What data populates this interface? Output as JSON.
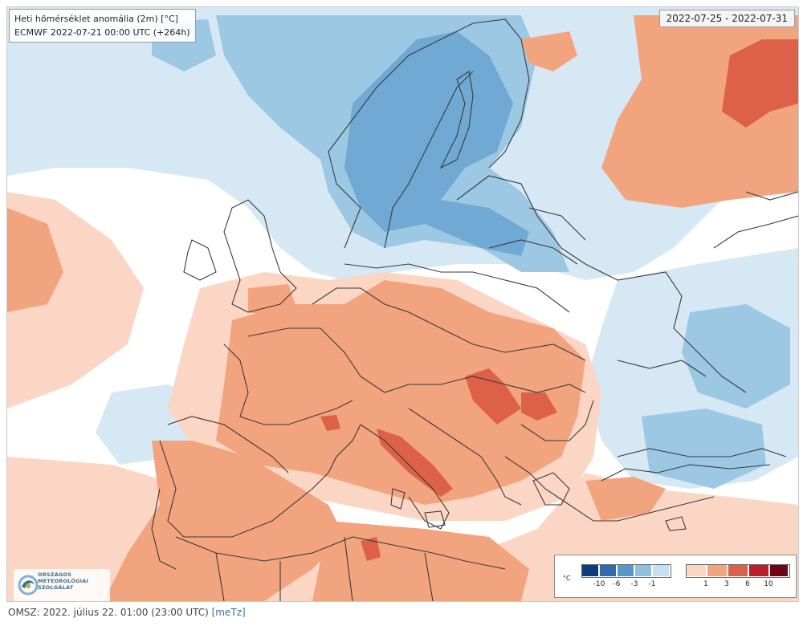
{
  "header": {
    "title": "Heti hőmérséklet anomália (2m) [°C]",
    "run": "ECMWF 2022-07-21 00:00 UTC (+264h)",
    "date_range": "2022-07-25 - 2022-07-31"
  },
  "legend": {
    "unit": "°C",
    "negative_ticks": [
      "-10",
      "-6",
      "-3",
      "-1"
    ],
    "positive_ticks": [
      "1",
      "3",
      "6",
      "10"
    ],
    "negative_colors": [
      "#0d3c7a",
      "#2e6ab0",
      "#5596cc",
      "#8fc0df",
      "#c7e0ef"
    ],
    "positive_colors": [
      "#fbd6c4",
      "#f2a47f",
      "#dd6148",
      "#bc1f2b",
      "#6e0517"
    ]
  },
  "logo": {
    "lines": [
      "ORSZÁGOS",
      "METEOROLÓGIAI",
      "SZOLGÁLAT"
    ]
  },
  "footer": {
    "source": "OMSZ: 2022. július 22. 01:00 (23:00  UTC)",
    "tag": "[meTz]"
  },
  "map_regions": {
    "light_blue": "#d6e8f4",
    "blue": "#9cc8e3",
    "mid_blue": "#6fa9d4",
    "light_orange": "#fbd6c4",
    "orange": "#f2a47f",
    "dark_orange": "#dd6148",
    "border_color": "#3a3a3a"
  }
}
